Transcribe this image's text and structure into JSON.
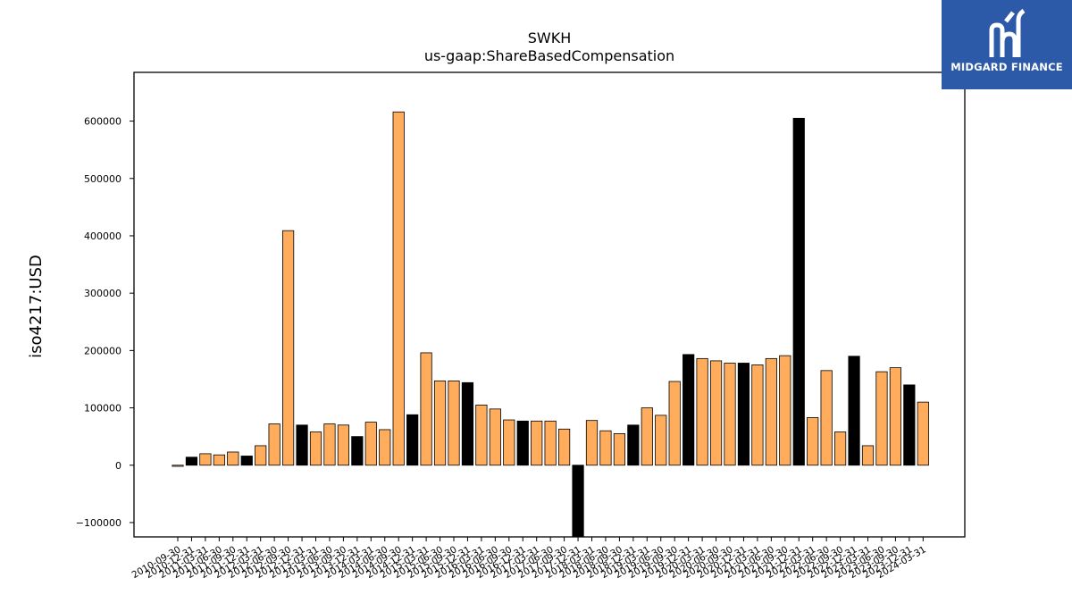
{
  "logo": {
    "text": "MIDGARD FINANCE"
  },
  "chart_data": {
    "type": "bar",
    "title": "SWKH",
    "subtitle": "us-gaap:ShareBasedCompensation",
    "xlabel": "",
    "ylabel": "iso4217:USD",
    "ylim": [
      -125000,
      685000
    ],
    "yticks": [
      -100000,
      0,
      100000,
      200000,
      300000,
      400000,
      500000,
      600000
    ],
    "ytick_labels": [
      "−100000",
      "0",
      "100000",
      "200000",
      "300000",
      "400000",
      "500000",
      "600000"
    ],
    "grid": false,
    "colors": {
      "quarter": "#ffad5c",
      "annual": "#000000",
      "edge": "#000000"
    },
    "categories": [
      "2010-09-30",
      "2010-12-31",
      "2011-03-31",
      "2011-06-30",
      "2011-09-30",
      "2011-12-31",
      "2012-03-31",
      "2012-06-30",
      "2012-09-30",
      "2012-12-31",
      "2013-03-31",
      "2013-06-30",
      "2013-09-30",
      "2013-12-31",
      "2014-03-31",
      "2014-06-30",
      "2014-09-30",
      "2014-12-31",
      "2015-03-31",
      "2015-06-30",
      "2015-09-30",
      "2015-12-31",
      "2016-03-31",
      "2016-06-30",
      "2016-09-30",
      "2016-12-31",
      "2017-03-31",
      "2017-06-30",
      "2017-09-30",
      "2017-12-31",
      "2018-03-31",
      "2018-06-30",
      "2018-09-30",
      "2018-12-31",
      "2019-03-31",
      "2019-06-30",
      "2019-09-30",
      "2019-12-31",
      "2020-03-31",
      "2020-06-30",
      "2020-09-30",
      "2020-12-31",
      "2021-03-31",
      "2021-06-30",
      "2021-09-30",
      "2021-12-31",
      "2022-03-31",
      "2022-06-30",
      "2022-09-30",
      "2022-12-31",
      "2023-03-31",
      "2023-06-30",
      "2023-09-30",
      "2023-12-31",
      "2024-03-31"
    ],
    "values": [
      -2000,
      14000,
      20000,
      18000,
      23000,
      16000,
      34000,
      72000,
      409000,
      70000,
      58000,
      72000,
      70000,
      50000,
      75000,
      62000,
      616000,
      88000,
      196000,
      147000,
      147000,
      144000,
      105000,
      98000,
      79000,
      77000,
      77000,
      77000,
      63000,
      -125000,
      78000,
      60000,
      55000,
      70000,
      100000,
      87000,
      146000,
      193000,
      186000,
      182000,
      178000,
      178000,
      175000,
      186000,
      191000,
      605000,
      83000,
      165000,
      58000,
      190000,
      34000,
      163000,
      170000,
      140000,
      110000
    ],
    "annual": [
      false,
      true,
      false,
      false,
      false,
      true,
      false,
      false,
      false,
      true,
      false,
      false,
      false,
      true,
      false,
      false,
      false,
      true,
      false,
      false,
      false,
      true,
      false,
      false,
      false,
      true,
      false,
      false,
      false,
      true,
      false,
      false,
      false,
      true,
      false,
      false,
      false,
      true,
      false,
      false,
      false,
      true,
      false,
      false,
      false,
      true,
      false,
      false,
      false,
      true,
      false,
      false,
      false,
      true,
      false
    ]
  }
}
